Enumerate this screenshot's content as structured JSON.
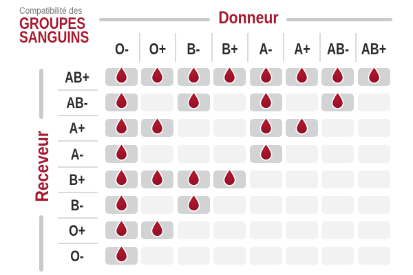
{
  "title": {
    "kicker": "Compatibilité des",
    "line1": "GROUPES",
    "line2": "SANGUINS"
  },
  "donor_axis_label": "Donneur",
  "receiver_axis_label": "Receveur",
  "donors": [
    "O-",
    "O+",
    "B-",
    "B+",
    "A-",
    "A+",
    "AB-",
    "AB+"
  ],
  "receivers": [
    "AB+",
    "AB-",
    "A+",
    "A-",
    "B+",
    "B-",
    "O+",
    "O-"
  ],
  "chart_data": {
    "type": "heatmap",
    "title": "Compatibilité des GROUPES SANGUINS",
    "x_axis_label": "Donneur",
    "y_axis_label": "Receveur",
    "columns": [
      "O-",
      "O+",
      "B-",
      "B+",
      "A-",
      "A+",
      "AB-",
      "AB+"
    ],
    "rows": [
      "AB+",
      "AB-",
      "A+",
      "A-",
      "B+",
      "B-",
      "O+",
      "O-"
    ],
    "values": [
      [
        1,
        1,
        1,
        1,
        1,
        1,
        1,
        1
      ],
      [
        1,
        0,
        1,
        0,
        1,
        0,
        1,
        0
      ],
      [
        1,
        1,
        0,
        0,
        1,
        1,
        0,
        0
      ],
      [
        1,
        0,
        0,
        0,
        1,
        0,
        0,
        0
      ],
      [
        1,
        1,
        1,
        1,
        0,
        0,
        0,
        0
      ],
      [
        1,
        0,
        1,
        0,
        0,
        0,
        0,
        0
      ],
      [
        1,
        1,
        0,
        0,
        0,
        0,
        0,
        0
      ],
      [
        1,
        0,
        0,
        0,
        0,
        0,
        0,
        0
      ]
    ],
    "value_meaning": "1 = compatible (blood drop shown), 0 = not compatible (empty cell)",
    "legend": "none",
    "grid": "rounded cells, filled cells gray with drop, empty cells light gray"
  },
  "icons": {
    "compatible_marker": "blood-drop-icon"
  },
  "colors": {
    "red": "#A6192E",
    "drop_light": "#B0182F",
    "drop_dark": "#8E0E24",
    "cell_filled": "#D2D3D4",
    "cell_empty": "#F2F2F3",
    "rule_gray": "#C8CACC",
    "separator_gray": "#D9DADB",
    "text_dark": "#2B2A29",
    "text_gray": "#77787B"
  }
}
